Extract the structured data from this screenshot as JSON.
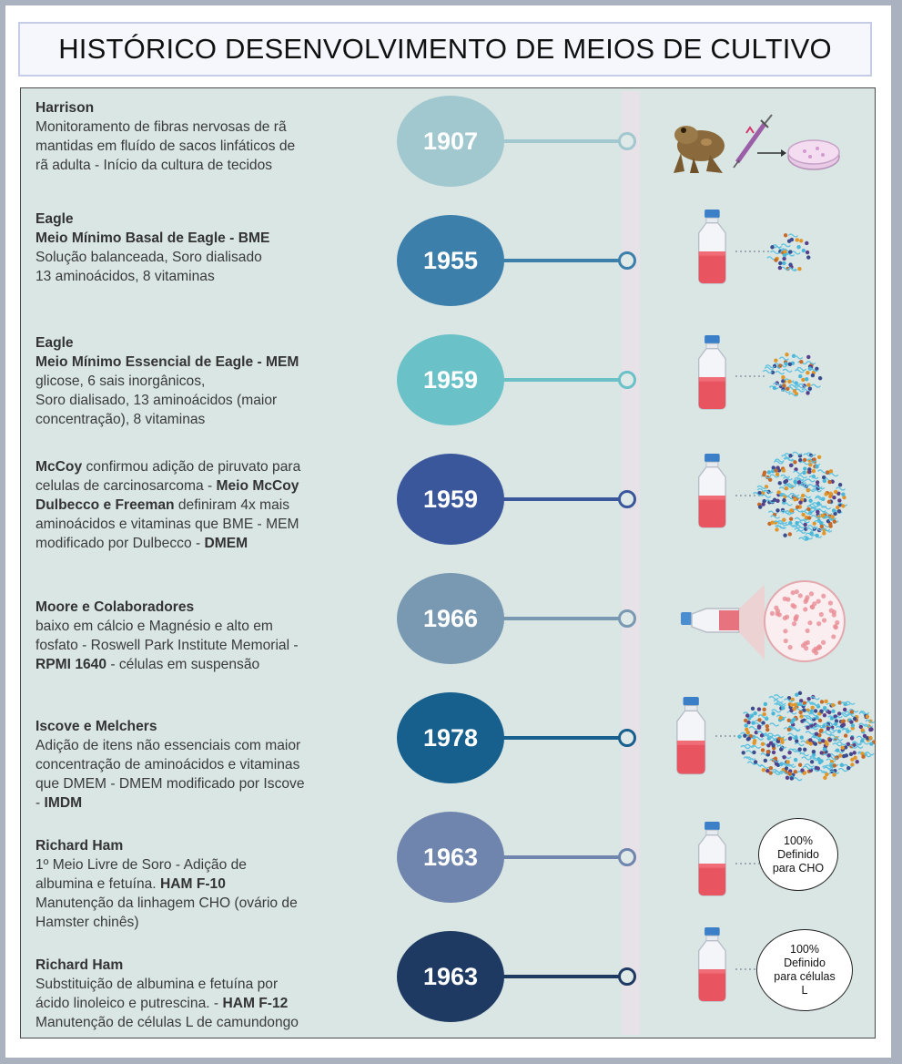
{
  "title": "HISTÓRICO DESENVOLVIMENTO DE MEIOS DE CULTIVO",
  "entries": [
    {
      "year": "1907",
      "color": "#a1c7cf",
      "lines": [
        "Harrison",
        "Monitoramento de fibras nervosas de rã",
        "mantidas em fluído de sacos linfáticos de",
        "rã adulta - Início da cultura de tecidos"
      ]
    },
    {
      "year": "1955",
      "color": "#3d7fab",
      "lines": [
        "Eagle",
        "Meio Mínimo Basal de Eagle - BME",
        "Solução balanceada, Soro dialisado",
        "13 aminoácidos, 8 vitaminas"
      ]
    },
    {
      "year": "1959",
      "color": "#6bc1c8",
      "lines": [
        "Eagle",
        "Meio Mínimo Essencial  de Eagle - MEM",
        "glicose, 6 sais inorgânicos,",
        "Soro dialisado, 13 aminoácidos (maior",
        "concentração), 8 vitaminas"
      ]
    },
    {
      "year": "1959",
      "color": "#3b579b",
      "parts": {
        "l1a": "McCoy ",
        "l1b": " confirmou adição de piruvato para",
        "l2a": "celulas de carcinosarcoma - ",
        "l2b": "Meio McCoy",
        "l3a": "Dulbecco e Freeman",
        "l3b": " definiram 4x mais",
        "l4": "aminoácidos e vitaminas que BME - MEM",
        "l5a": "modificado por Dulbecco - ",
        "l5b": "DMEM"
      }
    },
    {
      "year": "1966",
      "color": "#7999b2",
      "parts": {
        "l1": "Moore e Colaboradores",
        "l2": "baixo em cálcio e Magnésio e alto em",
        "l3": "fosfato -  Roswell Park Institute Memorial -",
        "l4a": "RPMI 1640",
        "l4b": " - células em suspensão"
      }
    },
    {
      "year": "1978",
      "color": "#175f8d",
      "parts": {
        "l1": "Iscove e Melchers",
        "l2": "Adição de itens não essenciais com maior",
        "l3": "concentração de aminoácidos e vitaminas",
        "l4": "que DMEM - DMEM modificado por Iscove",
        "l5a": "- ",
        "l5b": "IMDM"
      }
    },
    {
      "year": "1963",
      "color": "#6f85ad",
      "parts": {
        "l1": "Richard Ham",
        "l2": "1º Meio Livre de Soro - Adição de",
        "l3a": "albumina e fetuína.  ",
        "l3b": "HAM F-10",
        "l4": "Manutenção da linhagem CHO (ovário de",
        "l5": "Hamster chinês)"
      },
      "badge": [
        "100%",
        "Definido",
        "para CHO"
      ]
    },
    {
      "year": "1963",
      "color": "#1f3a62",
      "parts": {
        "l1": "Richard Ham",
        "l2": "Substituição de  albumina e fetuína por",
        "l3a": "ácido linoleico e putrescina. - ",
        "l3b": "HAM F-12",
        "l4": "Manutenção de células L de camundongo"
      },
      "badge": [
        "100%",
        "Definido",
        "para células",
        "L"
      ]
    }
  ],
  "icons": {
    "frog": "frog-icon",
    "syringe": "syringe-icon",
    "dish": "petri-dish-icon",
    "bottle": "media-bottle-icon",
    "particles": "molecule-cluster-icon",
    "flask": "culture-flask-icon",
    "magnify": "cells-magnified-icon"
  }
}
